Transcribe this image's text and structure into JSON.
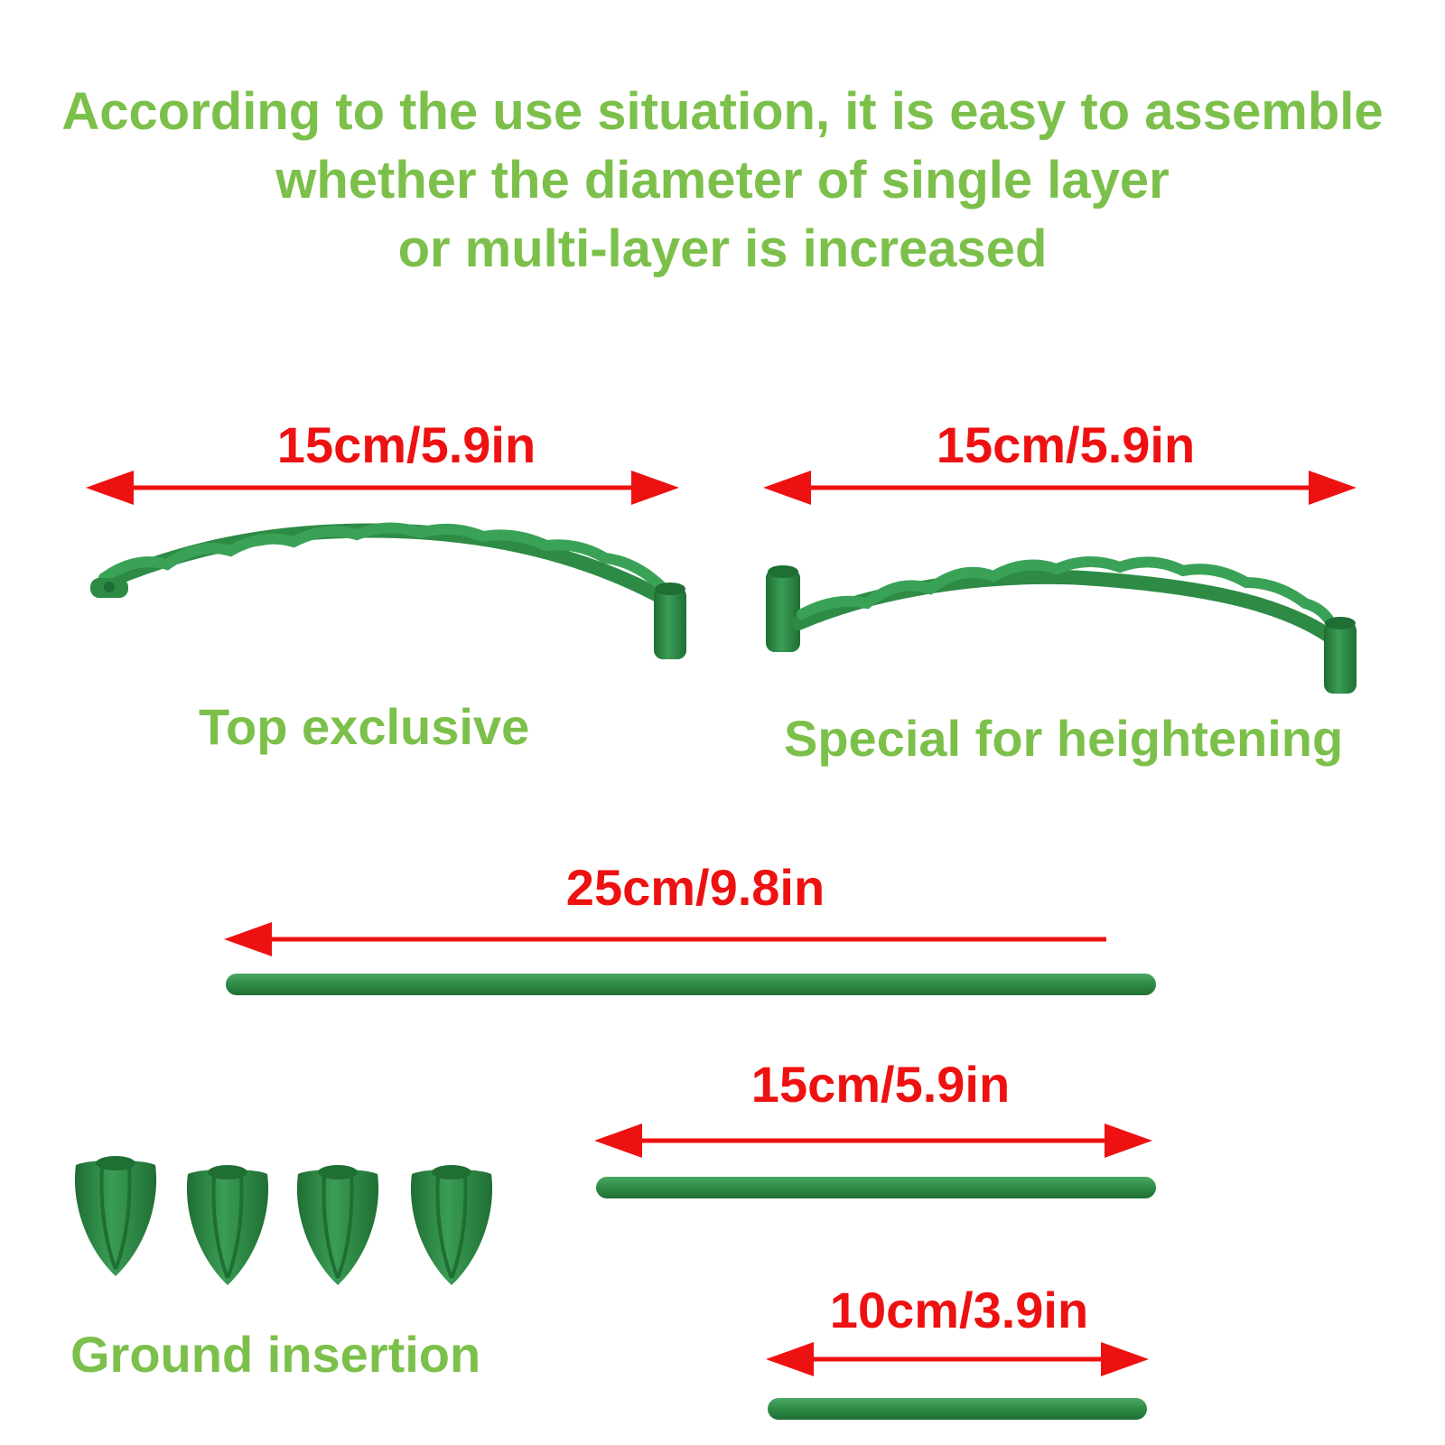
{
  "colors": {
    "green_text": "#7cc04b",
    "red": "#ee1111",
    "part_green": "#2e8b46",
    "part_dark": "#1f6e33"
  },
  "headline": {
    "line1": "According to the use situation, it is easy to assemble",
    "line2": "whether the diameter of single layer",
    "line3": "or multi-layer is increased"
  },
  "parts": {
    "top_exclusive": {
      "dimension": "15cm/5.9in",
      "label": "Top exclusive"
    },
    "heightening": {
      "dimension": "15cm/5.9in",
      "label": "Special for heightening"
    },
    "rod_long": {
      "dimension": "25cm/9.8in"
    },
    "rod_medium": {
      "dimension": "15cm/5.9in"
    },
    "rod_short": {
      "dimension": "10cm/3.9in"
    },
    "ground": {
      "label": "Ground insertion"
    }
  }
}
